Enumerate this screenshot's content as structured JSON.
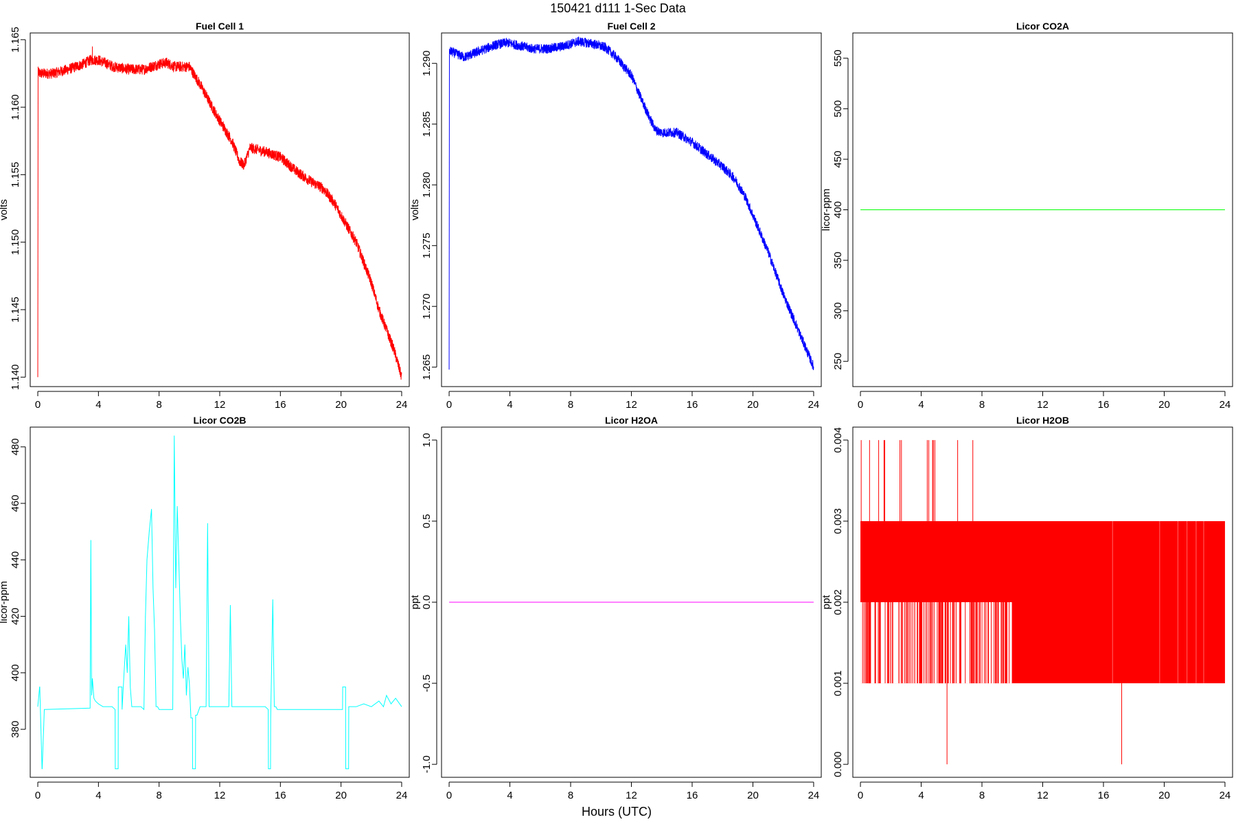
{
  "figure": {
    "title": "150421   d111   1-Sec Data",
    "xlabel": "Hours (UTC)"
  },
  "chart_data": [
    {
      "type": "line",
      "title": "Fuel Cell 1",
      "ylabel": "volts",
      "color": "#ff0000",
      "xlim": [
        -0.5,
        24.5
      ],
      "ylim": [
        1.1393,
        1.1655
      ],
      "xticks": [
        0,
        4,
        8,
        12,
        16,
        20,
        24
      ],
      "yticks": [
        1.14,
        1.145,
        1.15,
        1.155,
        1.16,
        1.165
      ],
      "ytick_labels": [
        "1.140",
        "1.145",
        "1.150",
        "1.155",
        "1.160",
        "1.165"
      ],
      "noise": 0.0004,
      "x": [
        0,
        0.02,
        0.05,
        1,
        2,
        3,
        3.5,
        4,
        5,
        6,
        7,
        8,
        8.5,
        9,
        10,
        10.8,
        11.5,
        12,
        12.8,
        13.3,
        13.6,
        14,
        15,
        16,
        17,
        18,
        18.8,
        19.5,
        20,
        21,
        22,
        22.5,
        23,
        23.5,
        24
      ],
      "y": [
        1.14,
        1.163,
        1.1625,
        1.1625,
        1.1628,
        1.1632,
        1.1635,
        1.1635,
        1.163,
        1.1628,
        1.1628,
        1.1632,
        1.1633,
        1.163,
        1.163,
        1.1615,
        1.16,
        1.159,
        1.1575,
        1.156,
        1.1557,
        1.157,
        1.1567,
        1.1563,
        1.1553,
        1.1545,
        1.154,
        1.153,
        1.152,
        1.15,
        1.147,
        1.145,
        1.1435,
        1.142,
        1.14
      ],
      "spikes": [
        {
          "x": 3.6,
          "y": 1.1645
        }
      ]
    },
    {
      "type": "line",
      "title": "Fuel Cell 2",
      "ylabel": "volts",
      "color": "#0000ff",
      "xlim": [
        -0.5,
        24.5
      ],
      "ylim": [
        1.2634,
        1.2925
      ],
      "xticks": [
        0,
        4,
        8,
        12,
        16,
        20,
        24
      ],
      "yticks": [
        1.265,
        1.27,
        1.275,
        1.28,
        1.285,
        1.29
      ],
      "ytick_labels": [
        "1.265",
        "1.270",
        "1.275",
        "1.280",
        "1.285",
        "1.290"
      ],
      "noise": 0.0004,
      "x": [
        0,
        0.02,
        0.05,
        1,
        2,
        3,
        3.8,
        4.5,
        5.5,
        6.5,
        7.5,
        8.5,
        9.5,
        10.3,
        11,
        12,
        12.5,
        13.2,
        13.6,
        14,
        15,
        16,
        17,
        18,
        18.8,
        19.5,
        20,
        21,
        22,
        22.5,
        23,
        23.5,
        24
      ],
      "y": [
        1.2648,
        1.2912,
        1.291,
        1.2905,
        1.291,
        1.2915,
        1.2917,
        1.2915,
        1.2912,
        1.2912,
        1.2914,
        1.2918,
        1.2916,
        1.2913,
        1.2905,
        1.289,
        1.2875,
        1.2855,
        1.2845,
        1.2843,
        1.2843,
        1.2835,
        1.2825,
        1.2815,
        1.2805,
        1.279,
        1.2775,
        1.2745,
        1.271,
        1.2695,
        1.268,
        1.2665,
        1.265
      ]
    },
    {
      "type": "line",
      "title": "Licor CO2A",
      "ylabel": "licor-ppm",
      "color": "#00ff00",
      "xlim": [
        -0.5,
        24.5
      ],
      "ylim": [
        225,
        575
      ],
      "xticks": [
        0,
        4,
        8,
        12,
        16,
        20,
        24
      ],
      "yticks": [
        250,
        300,
        350,
        400,
        450,
        500,
        550
      ],
      "ytick_labels": [
        "250",
        "300",
        "350",
        "400",
        "450",
        "500",
        "550"
      ],
      "x": [
        0,
        24
      ],
      "y": [
        400,
        400
      ]
    },
    {
      "type": "line",
      "title": "Licor CO2B",
      "ylabel": "licor-ppm",
      "color": "#00ffff",
      "xlim": [
        -0.5,
        24.5
      ],
      "ylim": [
        363,
        487
      ],
      "xticks": [
        0,
        4,
        8,
        12,
        16,
        20,
        24
      ],
      "yticks": [
        380,
        400,
        420,
        440,
        460,
        480
      ],
      "ytick_labels": [
        "380",
        "400",
        "420",
        "440",
        "460",
        "480"
      ],
      "x": [
        0,
        0.12,
        0.13,
        0.28,
        0.29,
        0.43,
        0.44,
        3.45,
        3.5,
        3.55,
        3.6,
        3.7,
        3.8,
        4.0,
        4.3,
        4.6,
        4.9,
        5.1,
        5.11,
        5.3,
        5.31,
        5.55,
        5.56,
        5.7,
        5.8,
        5.9,
        6.0,
        6.1,
        6.2,
        6.3,
        6.5,
        6.8,
        7.0,
        7.1,
        7.2,
        7.35,
        7.5,
        7.6,
        7.7,
        7.8,
        7.9,
        8.0,
        8.5,
        8.9,
        9.0,
        9.1,
        9.2,
        9.3,
        9.4,
        9.5,
        9.6,
        9.7,
        9.8,
        9.9,
        10.0,
        10.1,
        10.2,
        10.21,
        10.4,
        10.41,
        10.5,
        10.7,
        11.0,
        11.1,
        11.2,
        11.3,
        11.5,
        12.0,
        12.6,
        12.7,
        12.8,
        13.0,
        14.0,
        15.0,
        15.2,
        15.21,
        15.35,
        15.36,
        15.5,
        15.6,
        15.7,
        15.8,
        16.0,
        18.0,
        20.0,
        20.1,
        20.11,
        20.3,
        20.31,
        20.5,
        20.51,
        21.0,
        21.5,
        22.0,
        22.5,
        22.8,
        23.0,
        23.3,
        23.6,
        24.0
      ],
      "y": [
        388,
        395,
        395,
        366,
        366,
        387,
        387,
        387.5,
        447,
        392,
        398,
        391,
        390,
        389,
        388,
        388,
        388,
        387,
        366,
        366,
        395,
        395,
        387,
        401,
        410,
        400,
        420,
        395,
        388,
        388,
        388,
        388,
        387,
        420,
        440,
        450,
        458,
        430,
        415,
        388,
        388,
        387,
        387,
        387,
        484,
        430,
        459,
        440,
        420,
        405,
        398,
        410,
        392,
        402,
        396,
        384,
        384,
        366,
        366,
        385,
        385,
        388,
        388,
        388,
        453,
        388,
        388,
        388,
        388,
        424,
        388,
        388,
        388,
        388,
        387,
        366,
        366,
        384,
        426,
        388,
        388,
        387,
        387,
        387,
        387,
        387,
        395,
        395,
        366,
        366,
        388,
        388,
        389,
        388,
        390,
        388,
        392,
        389,
        391,
        388
      ]
    },
    {
      "type": "line",
      "title": "Licor H2OA",
      "ylabel": "ppt",
      "color": "#ff00ff",
      "xlim": [
        -0.5,
        24.5
      ],
      "ylim": [
        -1.08,
        1.08
      ],
      "xticks": [
        0,
        4,
        8,
        12,
        16,
        20,
        24
      ],
      "yticks": [
        -1.0,
        -0.5,
        0.0,
        0.5,
        1.0
      ],
      "ytick_labels": [
        "-1.0",
        "-0.5",
        "0.0",
        "0.5",
        "1.0"
      ],
      "x": [
        0,
        24
      ],
      "y": [
        0,
        0
      ]
    },
    {
      "type": "area",
      "title": "Licor H2OB",
      "ylabel": "ppt",
      "color": "#ff0000",
      "xlim": [
        -0.5,
        24.5
      ],
      "ylim": [
        -0.00016,
        0.00416
      ],
      "xticks": [
        0,
        4,
        8,
        12,
        16,
        20,
        24
      ],
      "yticks": [
        0.0,
        0.001,
        0.002,
        0.003,
        0.004
      ],
      "ytick_labels": [
        "0.000",
        "0.001",
        "0.002",
        "0.003",
        "0.004"
      ],
      "band_outer": [
        0.001,
        0.003
      ],
      "band_inner": [
        0.002,
        0.003
      ],
      "inner_until": 10.0,
      "spikes_up": [
        0.05,
        0.6,
        1.2,
        1.55,
        1.6,
        2.6,
        2.7,
        4.4,
        4.5,
        4.75,
        4.8,
        4.9,
        6.4,
        7.4
      ],
      "spikes_down": [
        5.7,
        17.2
      ],
      "spike_up_value": 0.004,
      "spike_down_value": 0.0
    }
  ]
}
